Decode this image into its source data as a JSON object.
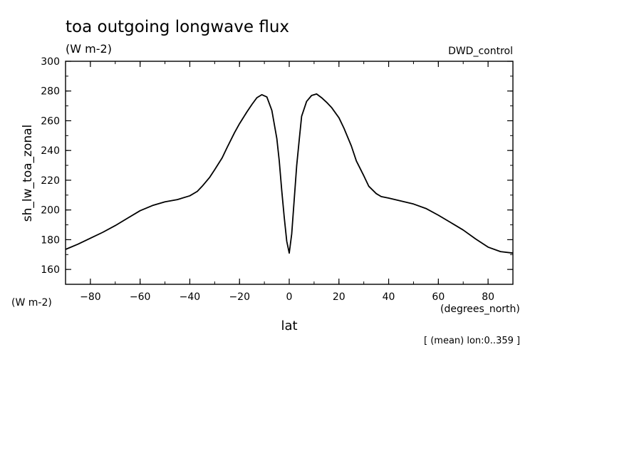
{
  "chart_data": {
    "type": "line",
    "title": "toa outgoing longwave flux",
    "units_label": "(W m-2)",
    "dataset_label": "DWD_control",
    "ylabel": "sh_lw_toa_zonal",
    "y_units_label": "(W m-2)",
    "xlabel": "lat",
    "x_units_label": "(degrees_north)",
    "footnote": "[ (mean) lon:0..359 ]",
    "xlim": [
      -90,
      90
    ],
    "ylim": [
      150,
      300
    ],
    "x_ticks": [
      -80,
      -60,
      -40,
      -20,
      0,
      20,
      40,
      60,
      80
    ],
    "y_ticks": [
      160,
      180,
      200,
      220,
      240,
      260,
      280,
      300
    ],
    "x_tick_labels": [
      "-80",
      "-60",
      "-40",
      "-20",
      "0",
      "20",
      "40",
      "60",
      "80"
    ],
    "y_tick_labels": [
      "160",
      "180",
      "200",
      "220",
      "240",
      "260",
      "280",
      "300"
    ],
    "grid": false,
    "series": [
      {
        "x": [
          -90,
          -85,
          -80,
          -75,
          -70,
          -65,
          -60,
          -55,
          -50,
          -45,
          -40,
          -37,
          -35,
          -32,
          -30,
          -27,
          -25,
          -22,
          -20,
          -17,
          -15,
          -13,
          -11,
          -9,
          -7,
          -5,
          -4,
          -3,
          -2,
          -1,
          0,
          1,
          2,
          3,
          4,
          5,
          7,
          9,
          11,
          13,
          15,
          17,
          20,
          22,
          25,
          27,
          30,
          32,
          35,
          37,
          40,
          45,
          50,
          55,
          60,
          65,
          70,
          75,
          80,
          85,
          90
        ],
        "y": [
          173.5,
          177,
          181,
          185,
          189.5,
          194.5,
          199.5,
          203,
          205.5,
          207,
          209.5,
          212.5,
          216,
          222,
          227,
          235,
          242,
          252,
          258,
          266,
          271,
          275.5,
          277.5,
          276,
          267,
          248,
          233,
          213,
          195,
          179,
          171,
          184,
          207,
          230,
          247,
          263,
          273,
          277,
          278,
          275.5,
          272.5,
          269,
          262,
          255,
          243,
          233,
          223,
          216,
          211,
          209,
          208,
          206,
          204,
          201,
          196.5,
          191.5,
          186.5,
          180.5,
          175,
          172,
          171
        ]
      }
    ]
  }
}
